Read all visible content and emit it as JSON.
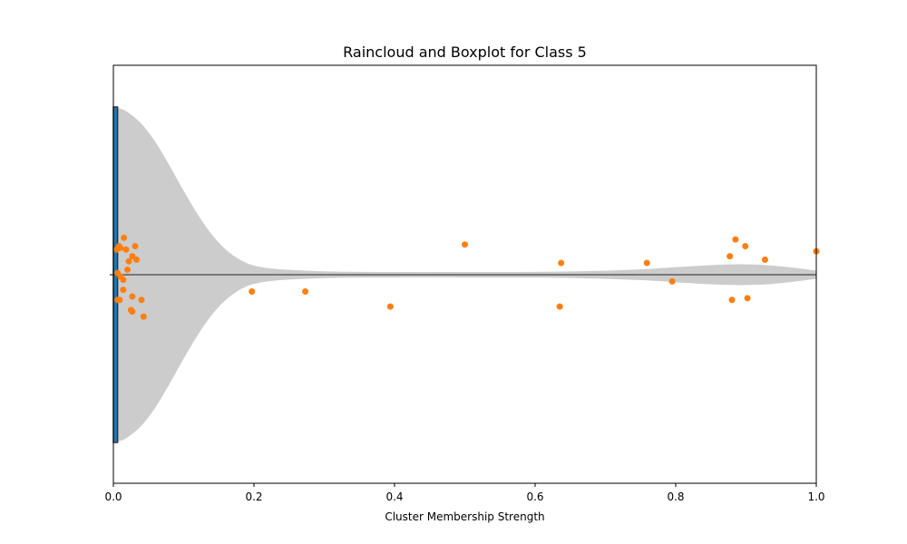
{
  "chart_data": {
    "type": "scatter",
    "title": "Raincloud and Boxplot for Class 5",
    "xlabel": "Cluster Membership Strength",
    "ylabel": "",
    "xlim": [
      0.0,
      1.0
    ],
    "x_ticks": [
      "0.0",
      "0.2",
      "0.4",
      "0.6",
      "0.8",
      "1.0"
    ],
    "grid": false,
    "legend": "none",
    "colors": {
      "points": "#ff7f0e",
      "violin": "#cccccc",
      "box": "#1f77b4",
      "box_edge": "#333333",
      "axis": "#000000",
      "background": "#ffffff"
    },
    "violin_density": [
      {
        "x": 0.0,
        "w": 1.0
      },
      {
        "x": 0.01,
        "w": 0.99
      },
      {
        "x": 0.02,
        "w": 0.97
      },
      {
        "x": 0.04,
        "w": 0.9
      },
      {
        "x": 0.06,
        "w": 0.79
      },
      {
        "x": 0.08,
        "w": 0.65
      },
      {
        "x": 0.1,
        "w": 0.5
      },
      {
        "x": 0.12,
        "w": 0.36
      },
      {
        "x": 0.14,
        "w": 0.24
      },
      {
        "x": 0.16,
        "w": 0.15
      },
      {
        "x": 0.18,
        "w": 0.09
      },
      {
        "x": 0.2,
        "w": 0.055
      },
      {
        "x": 0.23,
        "w": 0.035
      },
      {
        "x": 0.27,
        "w": 0.025
      },
      {
        "x": 0.32,
        "w": 0.018
      },
      {
        "x": 0.4,
        "w": 0.016
      },
      {
        "x": 0.5,
        "w": 0.016
      },
      {
        "x": 0.6,
        "w": 0.017
      },
      {
        "x": 0.68,
        "w": 0.022
      },
      {
        "x": 0.75,
        "w": 0.032
      },
      {
        "x": 0.8,
        "w": 0.045
      },
      {
        "x": 0.85,
        "w": 0.057
      },
      {
        "x": 0.89,
        "w": 0.062
      },
      {
        "x": 0.93,
        "w": 0.057
      },
      {
        "x": 0.96,
        "w": 0.045
      },
      {
        "x": 0.99,
        "w": 0.03
      },
      {
        "x": 1.0,
        "w": 0.025
      }
    ],
    "box": {
      "q1": 0.0,
      "q3": 0.006,
      "height_fraction": 1.0
    },
    "points": [
      {
        "x": 0.005,
        "y": 0.15
      },
      {
        "x": 0.008,
        "y": 0.17
      },
      {
        "x": 0.01,
        "y": 0.16
      },
      {
        "x": 0.015,
        "y": 0.22
      },
      {
        "x": 0.018,
        "y": 0.15
      },
      {
        "x": 0.022,
        "y": 0.08
      },
      {
        "x": 0.027,
        "y": 0.11
      },
      {
        "x": 0.031,
        "y": 0.17
      },
      {
        "x": 0.033,
        "y": 0.09
      },
      {
        "x": 0.02,
        "y": 0.03
      },
      {
        "x": 0.006,
        "y": 0.01
      },
      {
        "x": 0.01,
        "y": -0.01
      },
      {
        "x": 0.014,
        "y": -0.03
      },
      {
        "x": 0.014,
        "y": -0.09
      },
      {
        "x": 0.006,
        "y": -0.15
      },
      {
        "x": 0.009,
        "y": -0.15
      },
      {
        "x": 0.027,
        "y": -0.13
      },
      {
        "x": 0.04,
        "y": -0.15
      },
      {
        "x": 0.025,
        "y": -0.21
      },
      {
        "x": 0.027,
        "y": -0.22
      },
      {
        "x": 0.043,
        "y": -0.25
      },
      {
        "x": 0.197,
        "y": -0.1
      },
      {
        "x": 0.273,
        "y": -0.1
      },
      {
        "x": 0.394,
        "y": -0.19
      },
      {
        "x": 0.5,
        "y": 0.18
      },
      {
        "x": 0.635,
        "y": -0.19
      },
      {
        "x": 0.637,
        "y": 0.07
      },
      {
        "x": 0.759,
        "y": 0.07
      },
      {
        "x": 0.795,
        "y": -0.04
      },
      {
        "x": 0.877,
        "y": 0.11
      },
      {
        "x": 0.88,
        "y": -0.15
      },
      {
        "x": 0.885,
        "y": 0.21
      },
      {
        "x": 0.899,
        "y": 0.17
      },
      {
        "x": 0.902,
        "y": -0.14
      },
      {
        "x": 0.927,
        "y": 0.09
      },
      {
        "x": 1.0,
        "y": 0.14
      }
    ]
  }
}
